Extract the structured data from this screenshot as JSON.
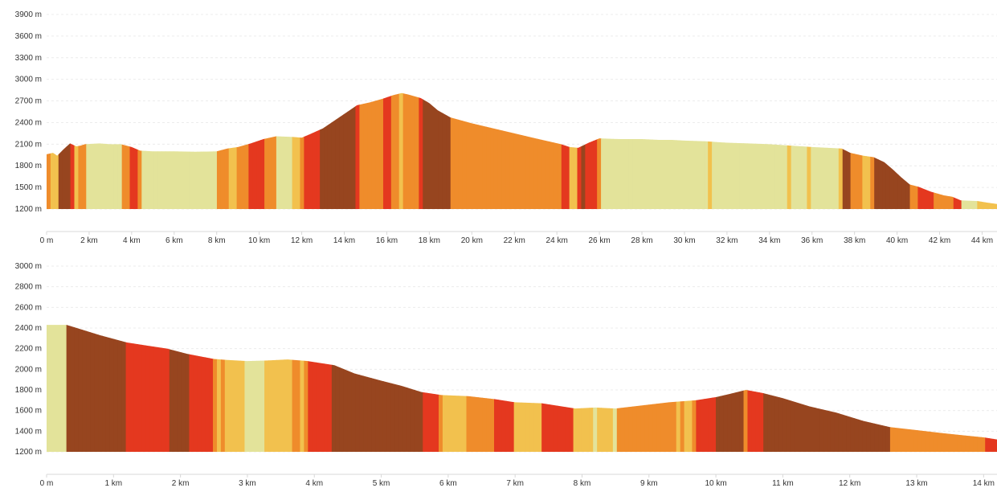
{
  "palette": {
    "flat": "#e3e39a",
    "gentle": "#f2c14e",
    "moderate": "#ef8c2b",
    "steep": "#e4381f",
    "very_steep": "#97451f",
    "grid": "#ececec",
    "axis_text": "#333333"
  },
  "chart_data": [
    {
      "type": "area",
      "title": "",
      "xlabel": "",
      "ylabel": "",
      "x_unit": "km",
      "y_unit": "m",
      "xlim": [
        0,
        44.7
      ],
      "ylim": [
        1200,
        3900
      ],
      "y_ticks": [
        1200,
        1500,
        1800,
        2100,
        2400,
        2700,
        3000,
        3300,
        3600,
        3900
      ],
      "y_tick_labels": [
        "1200 m",
        "1500 m",
        "1800 m",
        "2100 m",
        "2400 m",
        "2700 m",
        "3000 m",
        "3300 m",
        "3600 m",
        "3900 m"
      ],
      "x_ticks": [
        0,
        2,
        4,
        6,
        8,
        10,
        12,
        14,
        16,
        18,
        20,
        22,
        24,
        26,
        28,
        30,
        32,
        34,
        36,
        38,
        40,
        42,
        44
      ],
      "x_tick_labels": [
        "0 m",
        "2 km",
        "4 km",
        "6 km",
        "8 km",
        "10 km",
        "12 km",
        "14 km",
        "16 km",
        "18 km",
        "20 km",
        "22 km",
        "24 km",
        "26 km",
        "28 km",
        "30 km",
        "32 km",
        "34 km",
        "36 km",
        "38 km",
        "40 km",
        "42 km",
        "44 km"
      ],
      "grid": true,
      "series": [
        {
          "x": [
            0,
            0.3,
            0.5,
            0.8,
            1.1,
            1.4,
            1.6,
            1.8,
            2.5,
            3.0,
            3.5,
            4.0,
            4.4,
            5.0,
            6.0,
            7.0,
            8.0,
            8.5,
            9.0,
            9.6,
            10.2,
            10.8,
            11.6,
            12.0,
            12.4,
            13.0,
            13.6,
            14.2,
            14.6,
            15.2,
            15.8,
            16.3,
            16.7,
            17.0,
            17.6,
            18.0,
            18.4,
            19.0,
            20.0,
            21.0,
            22.0,
            23.0,
            23.6,
            24.2,
            24.6,
            25.0,
            25.5,
            26.0,
            27.0,
            28.0,
            28.8,
            29.4,
            30.0,
            31.0,
            32.0,
            33.0,
            34.0,
            35.0,
            36.0,
            37.4,
            37.8,
            38.4,
            38.9,
            39.4,
            39.8,
            40.2,
            40.6,
            41.0,
            41.6,
            42.2,
            42.6,
            43.0,
            43.8,
            44.2,
            44.7
          ],
          "y": [
            1960,
            1980,
            1940,
            2030,
            2110,
            2070,
            2080,
            2100,
            2110,
            2100,
            2100,
            2060,
            2010,
            2000,
            2000,
            1995,
            2000,
            2040,
            2060,
            2110,
            2170,
            2210,
            2200,
            2190,
            2240,
            2320,
            2440,
            2560,
            2640,
            2680,
            2730,
            2780,
            2810,
            2790,
            2740,
            2670,
            2570,
            2470,
            2390,
            2320,
            2250,
            2180,
            2140,
            2100,
            2060,
            2050,
            2120,
            2180,
            2170,
            2170,
            2160,
            2160,
            2150,
            2140,
            2120,
            2110,
            2100,
            2080,
            2060,
            2040,
            1980,
            1940,
            1920,
            1850,
            1750,
            1640,
            1540,
            1510,
            1440,
            1390,
            1370,
            1320,
            1310,
            1290,
            1270
          ]
        }
      ]
    },
    {
      "type": "area",
      "title": "",
      "xlabel": "",
      "ylabel": "",
      "x_unit": "km",
      "y_unit": "m",
      "xlim": [
        0,
        14.2
      ],
      "ylim": [
        1200,
        3000
      ],
      "y_ticks": [
        1200,
        1400,
        1600,
        1800,
        2000,
        2200,
        2400,
        2600,
        2800,
        3000
      ],
      "y_tick_labels": [
        "1200 m",
        "1400 m",
        "1600 m",
        "1800 m",
        "2000 m",
        "2200 m",
        "2400 m",
        "2600 m",
        "2800 m",
        "3000 m"
      ],
      "x_ticks": [
        0,
        1,
        2,
        3,
        4,
        5,
        6,
        7,
        8,
        9,
        10,
        11,
        12,
        13,
        14
      ],
      "x_tick_labels": [
        "0 m",
        "1 km",
        "2 km",
        "3 km",
        "4 km",
        "5 km",
        "6 km",
        "7 km",
        "8 km",
        "9 km",
        "10 km",
        "11 km",
        "12 km",
        "13 km",
        "14 km"
      ],
      "grid": true,
      "series": [
        {
          "x": [
            0,
            0.3,
            0.5,
            0.8,
            1.2,
            1.5,
            1.8,
            2.1,
            2.5,
            2.7,
            3.0,
            3.3,
            3.6,
            3.9,
            4.3,
            4.6,
            5.0,
            5.3,
            5.6,
            5.9,
            6.3,
            6.7,
            7.0,
            7.4,
            7.9,
            8.2,
            8.5,
            8.9,
            9.3,
            9.7,
            10.0,
            10.2,
            10.45,
            10.7,
            11.0,
            11.4,
            11.8,
            12.2,
            12.6,
            13.0,
            13.4,
            13.7,
            14.0,
            14.2
          ],
          "y": [
            2430,
            2430,
            2390,
            2330,
            2260,
            2230,
            2200,
            2150,
            2100,
            2090,
            2080,
            2085,
            2095,
            2080,
            2040,
            1960,
            1890,
            1840,
            1780,
            1750,
            1740,
            1710,
            1680,
            1670,
            1620,
            1630,
            1620,
            1650,
            1680,
            1700,
            1730,
            1760,
            1800,
            1770,
            1720,
            1640,
            1580,
            1500,
            1440,
            1410,
            1380,
            1360,
            1340,
            1320
          ]
        }
      ]
    }
  ]
}
